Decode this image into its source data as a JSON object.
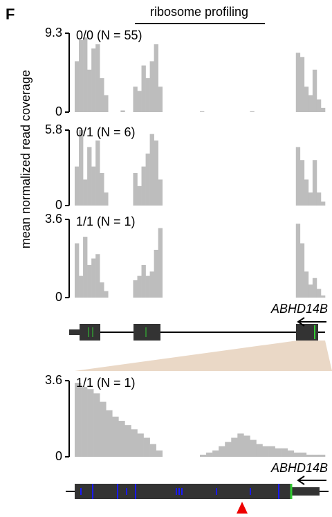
{
  "panel_label": "F",
  "header": "ribosome profiling",
  "y_label": "mean normalized read coverage",
  "chart_data": [
    {
      "type": "bar",
      "title": "0/0 (N = 55)",
      "color": "#bdbdbd",
      "ylim": [
        0,
        9.3
      ],
      "yticks": [
        0,
        9.3
      ],
      "values": [
        6,
        8.5,
        8.8,
        5,
        7.5,
        8,
        4,
        2,
        0,
        0,
        0,
        0.2,
        0,
        0,
        3,
        2.5,
        5.5,
        4,
        6,
        8,
        3,
        0,
        0,
        0,
        0,
        0,
        0,
        0,
        0,
        0,
        0.1,
        0,
        0,
        0,
        0,
        0,
        0,
        0,
        0,
        0,
        0,
        0,
        0.1,
        0,
        0,
        0,
        0,
        0,
        0,
        0,
        0,
        0,
        0,
        7,
        6.5,
        3,
        2,
        5,
        1.5,
        0.5
      ]
    },
    {
      "type": "bar",
      "title": "0/1 (N = 6)",
      "color": "#bdbdbd",
      "ylim": [
        0,
        5.8
      ],
      "yticks": [
        0,
        5.8
      ],
      "values": [
        3,
        5.8,
        2,
        4.5,
        3,
        5,
        2.5,
        1,
        0,
        0,
        0,
        0,
        0,
        0,
        2.5,
        1.5,
        3,
        4,
        5.5,
        5,
        2,
        0,
        0,
        0,
        0,
        0,
        0,
        0,
        0,
        0,
        0,
        0,
        0,
        0,
        0,
        0,
        0,
        0,
        0,
        0,
        0,
        0,
        0,
        0,
        0,
        0,
        0,
        0,
        0,
        0,
        0,
        0,
        0,
        4.5,
        3.5,
        2,
        1,
        3.5,
        1,
        0.3
      ]
    },
    {
      "type": "bar",
      "title": "1/1 (N = 1)",
      "color": "#bdbdbd",
      "ylim": [
        0,
        3.6
      ],
      "yticks": [
        0,
        3.6
      ],
      "values": [
        2.5,
        1,
        2.8,
        1.5,
        1.8,
        2,
        0.7,
        0.3,
        0,
        0,
        0,
        0,
        0,
        0,
        0.8,
        1,
        1.5,
        1,
        1.2,
        2.2,
        3.2,
        0,
        0,
        0,
        0,
        0,
        0,
        0,
        0,
        0,
        0,
        0,
        0,
        0,
        0,
        0,
        0,
        0,
        0,
        0,
        0,
        0,
        0,
        0,
        0,
        0,
        0,
        0,
        0,
        0,
        0,
        0,
        0,
        3.4,
        2.5,
        1.2,
        0.6,
        0.9,
        0.4,
        0.1
      ]
    },
    {
      "type": "bar",
      "title": "1/1 (N = 1)",
      "color": "#bdbdbd",
      "ylim": [
        0,
        3.6
      ],
      "yticks": [
        0,
        3.6
      ],
      "values": [
        3.5,
        3.3,
        3.2,
        3,
        2.6,
        2.2,
        1.9,
        1.7,
        1.5,
        1.3,
        1.1,
        0.9,
        0.6,
        0.3,
        0,
        0,
        0,
        0,
        0,
        0,
        0.1,
        0.2,
        0.3,
        0.5,
        0.7,
        0.9,
        1.1,
        1,
        0.8,
        0.6,
        0.5,
        0.5,
        0.4,
        0.4,
        0.3,
        0.2,
        0.2,
        0.1,
        0.1,
        0.1
      ]
    }
  ],
  "gene_models": [
    {
      "label": "ABHD14B"
    },
    {
      "label": "ABHD14B"
    }
  ]
}
